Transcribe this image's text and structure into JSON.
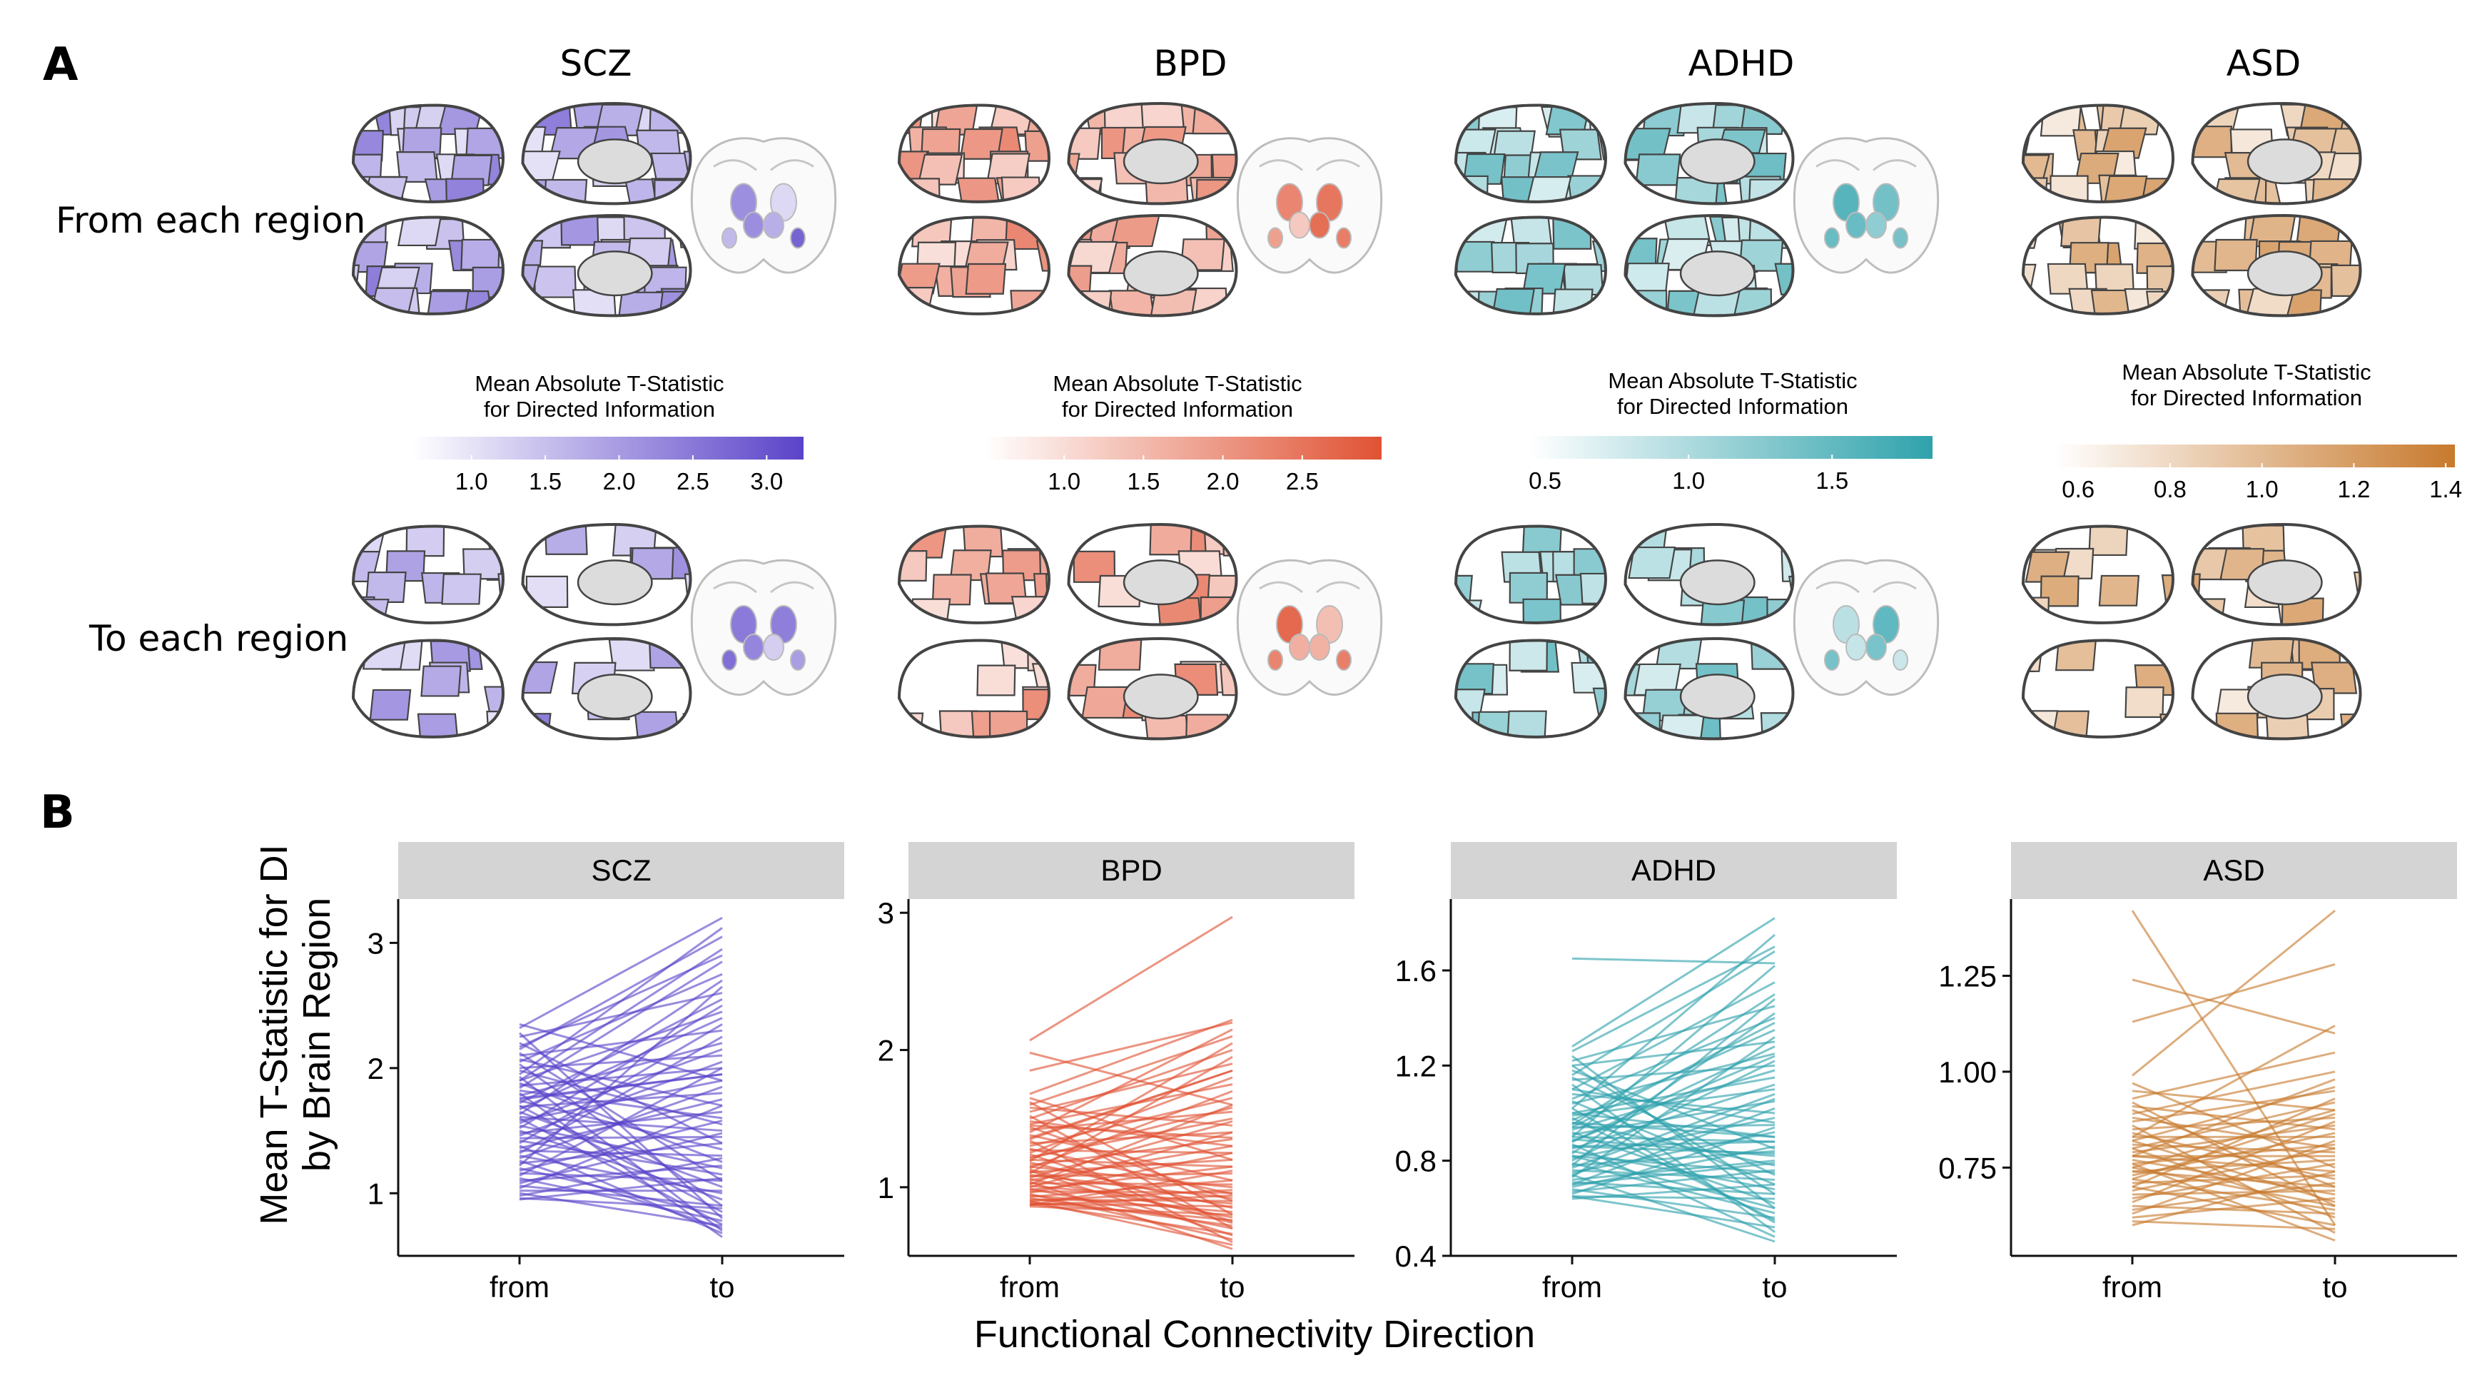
{
  "panel_a": {
    "letter": "A",
    "row_labels": [
      "From each region",
      "To each region"
    ],
    "colorbar_title": [
      "Mean Absolute T-Statistic",
      "for Directed Information"
    ],
    "disorders": [
      {
        "name": "SCZ",
        "color": "#5b43c9",
        "ticks": [
          "1.0",
          "1.5",
          "2.0",
          "2.5",
          "3.0"
        ],
        "tick_values": [
          1.0,
          1.5,
          2.0,
          2.5,
          3.0
        ],
        "range": [
          0.6,
          3.25
        ]
      },
      {
        "name": "BPD",
        "color": "#e05233",
        "ticks": [
          "1.0",
          "1.5",
          "2.0",
          "2.5"
        ],
        "tick_values": [
          1.0,
          1.5,
          2.0,
          2.5
        ],
        "range": [
          0.5,
          3.0
        ]
      },
      {
        "name": "ADHD",
        "color": "#2fa2ac",
        "ticks": [
          "0.5",
          "1.0",
          "1.5"
        ],
        "tick_values": [
          0.5,
          1.0,
          1.5
        ],
        "range": [
          0.45,
          1.85
        ]
      },
      {
        "name": "ASD",
        "color": "#c87a2e",
        "ticks": [
          "0.6",
          "0.8",
          "1.0",
          "1.2",
          "1.4"
        ],
        "tick_values": [
          0.6,
          0.8,
          1.0,
          1.2,
          1.4
        ],
        "range": [
          0.55,
          1.42
        ]
      }
    ]
  },
  "panel_b": {
    "letter": "B",
    "x_axis_title": "Functional Connectivity Direction",
    "y_axis_title": [
      "Mean T-Statistic for DI",
      "by Brain Region"
    ]
  },
  "chart_data": [
    {
      "type": "line",
      "title": "SCZ",
      "x": [
        "from",
        "to"
      ],
      "ylim": [
        0.5,
        3.35
      ],
      "yticks": [
        "1",
        "2",
        "3"
      ],
      "ytick_values": [
        1,
        2,
        3
      ],
      "color": "#5b43c9",
      "series_count": 68,
      "from_values": [
        2.35,
        2.32,
        2.28,
        2.25,
        2.2,
        2.17,
        2.15,
        2.12,
        2.1,
        2.07,
        2.05,
        2.03,
        2.0,
        1.98,
        1.95,
        1.93,
        1.9,
        1.88,
        1.86,
        1.84,
        1.82,
        1.8,
        1.78,
        1.76,
        1.74,
        1.72,
        1.7,
        1.69,
        1.67,
        1.65,
        1.63,
        1.61,
        1.6,
        1.58,
        1.56,
        1.54,
        1.52,
        1.5,
        1.48,
        1.46,
        1.44,
        1.42,
        1.4,
        1.38,
        1.36,
        1.34,
        1.32,
        1.3,
        1.28,
        1.26,
        1.24,
        1.22,
        1.2,
        1.18,
        1.16,
        1.14,
        1.12,
        1.1,
        1.08,
        1.06,
        1.04,
        1.02,
        1.0,
        0.98,
        0.96,
        0.95,
        1.9,
        1.75
      ],
      "to_values": [
        1.9,
        3.2,
        0.8,
        2.6,
        1.4,
        2.9,
        3.05,
        1.1,
        2.3,
        1.7,
        2.75,
        0.9,
        2.1,
        1.55,
        3.12,
        0.7,
        2.45,
        1.25,
        2.0,
        2.85,
        1.6,
        0.65,
        2.2,
        1.95,
        1.35,
        2.55,
        0.85,
        1.8,
        2.4,
        1.05,
        2.7,
        1.5,
        0.75,
        1.9,
        2.15,
        1.2,
        2.5,
        0.95,
        1.65,
        2.05,
        1.45,
        1.15,
        2.35,
        0.68,
        1.75,
        1.3,
        2.25,
        1.0,
        1.85,
        0.72,
        1.4,
        2.65,
        0.82,
        1.58,
        1.1,
        2.0,
        0.78,
        1.22,
        1.48,
        0.9,
        1.7,
        1.02,
        0.74,
        1.28,
        0.88,
        1.12,
        2.95,
        1.95
      ]
    },
    {
      "type": "line",
      "title": "BPD",
      "x": [
        "from",
        "to"
      ],
      "ylim": [
        0.5,
        3.1
      ],
      "yticks": [
        "1",
        "2",
        "3"
      ],
      "ytick_values": [
        1,
        2,
        3
      ],
      "color": "#e05233",
      "series_count": 66,
      "from_values": [
        2.07,
        1.98,
        1.85,
        1.68,
        1.65,
        1.62,
        1.6,
        1.58,
        1.55,
        1.52,
        1.5,
        1.48,
        1.46,
        1.44,
        1.42,
        1.4,
        1.38,
        1.36,
        1.34,
        1.32,
        1.3,
        1.28,
        1.27,
        1.25,
        1.24,
        1.22,
        1.2,
        1.19,
        1.18,
        1.16,
        1.15,
        1.14,
        1.12,
        1.11,
        1.1,
        1.09,
        1.08,
        1.07,
        1.06,
        1.05,
        1.04,
        1.03,
        1.02,
        1.01,
        1.0,
        0.99,
        0.98,
        0.97,
        0.96,
        0.95,
        0.94,
        0.93,
        0.92,
        0.91,
        0.9,
        0.9,
        0.89,
        0.88,
        0.88,
        0.87,
        0.87,
        0.86,
        1.35,
        1.21,
        1.13,
        1.45
      ],
      "to_values": [
        2.97,
        1.6,
        2.2,
        2.22,
        1.2,
        0.8,
        2.1,
        1.45,
        1.9,
        0.7,
        2.0,
        1.3,
        1.75,
        0.9,
        1.55,
        2.15,
        1.05,
        1.85,
        0.6,
        1.4,
        1.65,
        0.95,
        1.25,
        1.8,
        0.75,
        1.5,
        1.15,
        2.05,
        0.85,
        1.35,
        1.0,
        1.7,
        0.65,
        1.2,
        1.95,
        0.92,
        1.1,
        1.48,
        0.78,
        1.3,
        0.55,
        1.02,
        1.6,
        0.88,
        1.4,
        0.7,
        1.15,
        0.96,
        1.25,
        0.62,
        0.82,
        1.05,
        0.72,
        0.9,
        0.58,
        0.98,
        0.76,
        0.66,
        0.86,
        1.12,
        0.94,
        0.8,
        1.85,
        1.58,
        0.74,
        1.36
      ]
    },
    {
      "type": "line",
      "title": "ADHD",
      "x": [
        "from",
        "to"
      ],
      "ylim": [
        0.4,
        1.9
      ],
      "yticks": [
        "0.4",
        "0.8",
        "1.2",
        "1.6"
      ],
      "ytick_values": [
        0.4,
        0.8,
        1.2,
        1.6
      ],
      "color": "#2fa2ac",
      "series_count": 68,
      "from_values": [
        1.65,
        1.28,
        1.26,
        1.24,
        1.22,
        1.2,
        1.18,
        1.16,
        1.14,
        1.12,
        1.1,
        1.08,
        1.06,
        1.05,
        1.04,
        1.02,
        1.0,
        0.99,
        0.98,
        0.97,
        0.96,
        0.95,
        0.94,
        0.93,
        0.92,
        0.91,
        0.9,
        0.89,
        0.88,
        0.87,
        0.86,
        0.85,
        0.84,
        0.83,
        0.82,
        0.81,
        0.8,
        0.79,
        0.78,
        0.77,
        0.76,
        0.75,
        0.74,
        0.73,
        0.72,
        0.71,
        0.7,
        0.69,
        0.68,
        0.67,
        0.66,
        0.65,
        0.65,
        0.64,
        1.0,
        0.9,
        0.82,
        0.78,
        1.1,
        1.15,
        0.94,
        0.86,
        0.74,
        1.02,
        0.96,
        0.88,
        1.2,
        0.7
      ],
      "to_values": [
        1.63,
        1.82,
        1.7,
        0.6,
        1.45,
        1.3,
        0.85,
        1.68,
        1.2,
        0.5,
        1.55,
        1.0,
        1.4,
        0.7,
        1.25,
        1.75,
        0.9,
        1.1,
        0.55,
        1.35,
        0.78,
        1.5,
        0.95,
        1.18,
        0.62,
        1.05,
        1.62,
        0.82,
        1.28,
        0.48,
        0.88,
        1.12,
        0.68,
        1.42,
        0.75,
        0.98,
        1.22,
        0.58,
        0.84,
        1.08,
        0.72,
        0.92,
        0.46,
        1.32,
        0.8,
        0.66,
        1.02,
        0.86,
        0.56,
        0.76,
        0.94,
        0.64,
        0.52,
        0.7,
        1.15,
        0.88,
        0.6,
        1.48,
        0.96,
        0.74,
        1.38,
        0.83,
        1.06,
        0.54,
        0.9,
        1.24,
        0.66,
        0.79
      ],
      "highlight_line": {
        "from": 1.65,
        "to": 1.63
      }
    },
    {
      "type": "line",
      "title": "ASD",
      "x": [
        "from",
        "to"
      ],
      "ylim": [
        0.52,
        1.45
      ],
      "yticks": [
        "0.75",
        "1.00",
        "1.25"
      ],
      "ytick_values": [
        0.75,
        1.0,
        1.25
      ],
      "color": "#c87a2e",
      "series_count": 50,
      "from_values": [
        1.42,
        1.24,
        1.13,
        0.99,
        0.97,
        0.95,
        0.93,
        0.92,
        0.91,
        0.9,
        0.89,
        0.88,
        0.87,
        0.86,
        0.85,
        0.84,
        0.83,
        0.83,
        0.82,
        0.81,
        0.8,
        0.8,
        0.79,
        0.78,
        0.78,
        0.77,
        0.76,
        0.76,
        0.75,
        0.74,
        0.74,
        0.73,
        0.72,
        0.71,
        0.7,
        0.7,
        0.69,
        0.68,
        0.67,
        0.66,
        0.65,
        0.64,
        0.63,
        0.62,
        0.61,
        0.6,
        0.82,
        0.78,
        0.75,
        0.72
      ],
      "to_values": [
        0.6,
        1.1,
        1.28,
        1.42,
        0.75,
        0.9,
        1.05,
        0.65,
        0.85,
        0.7,
        1.0,
        0.8,
        0.95,
        0.58,
        0.88,
        0.72,
        0.83,
        1.12,
        0.66,
        0.79,
        0.92,
        0.62,
        0.86,
        0.74,
        0.98,
        0.68,
        0.81,
        0.56,
        0.9,
        0.77,
        0.7,
        0.84,
        0.64,
        0.73,
        0.93,
        0.6,
        0.8,
        0.69,
        0.76,
        0.87,
        0.63,
        0.71,
        0.82,
        0.67,
        0.59,
        0.74,
        0.96,
        0.78,
        0.65,
        0.89
      ]
    }
  ]
}
